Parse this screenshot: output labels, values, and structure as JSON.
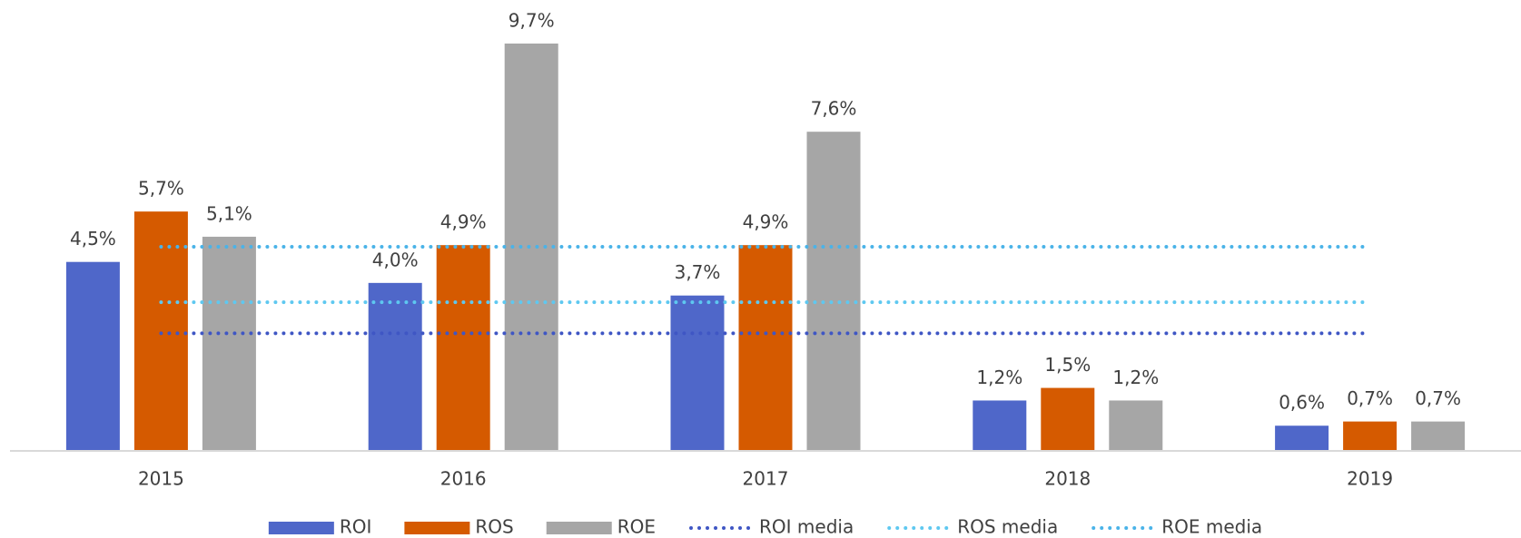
{
  "chart_data": {
    "type": "bar",
    "categories": [
      "2015",
      "2016",
      "2017",
      "2018",
      "2019"
    ],
    "series": [
      {
        "name": "ROI",
        "type": "bar",
        "color": "#4f67c9",
        "values": [
          4.5,
          4.0,
          3.7,
          1.2,
          0.6
        ],
        "value_labels": [
          "4,5%",
          "4,0%",
          "3,7%",
          "1,2%",
          "0,6%"
        ]
      },
      {
        "name": "ROS",
        "type": "bar",
        "color": "#d55a00",
        "values": [
          5.7,
          4.9,
          4.9,
          1.5,
          0.7
        ],
        "value_labels": [
          "5,7%",
          "4,9%",
          "4,9%",
          "1,5%",
          "0,7%"
        ]
      },
      {
        "name": "ROE",
        "type": "bar",
        "color": "#a6a6a6",
        "values": [
          5.1,
          9.7,
          7.6,
          1.2,
          0.7
        ],
        "value_labels": [
          "5,1%",
          "9,7%",
          "7,6%",
          "1,2%",
          "0,7%"
        ]
      },
      {
        "name": "ROI media",
        "type": "line",
        "color": "#3f56c4",
        "values": [
          2.8,
          2.8,
          2.8,
          2.8,
          2.8
        ]
      },
      {
        "name": "ROS media",
        "type": "line",
        "color": "#5ec8f0",
        "values": [
          3.54,
          3.54,
          3.54,
          3.54,
          3.54
        ]
      },
      {
        "name": "ROE media",
        "type": "line",
        "color": "#4ab3e8",
        "values": [
          4.86,
          4.86,
          4.86,
          4.86,
          4.86
        ]
      }
    ]
  }
}
